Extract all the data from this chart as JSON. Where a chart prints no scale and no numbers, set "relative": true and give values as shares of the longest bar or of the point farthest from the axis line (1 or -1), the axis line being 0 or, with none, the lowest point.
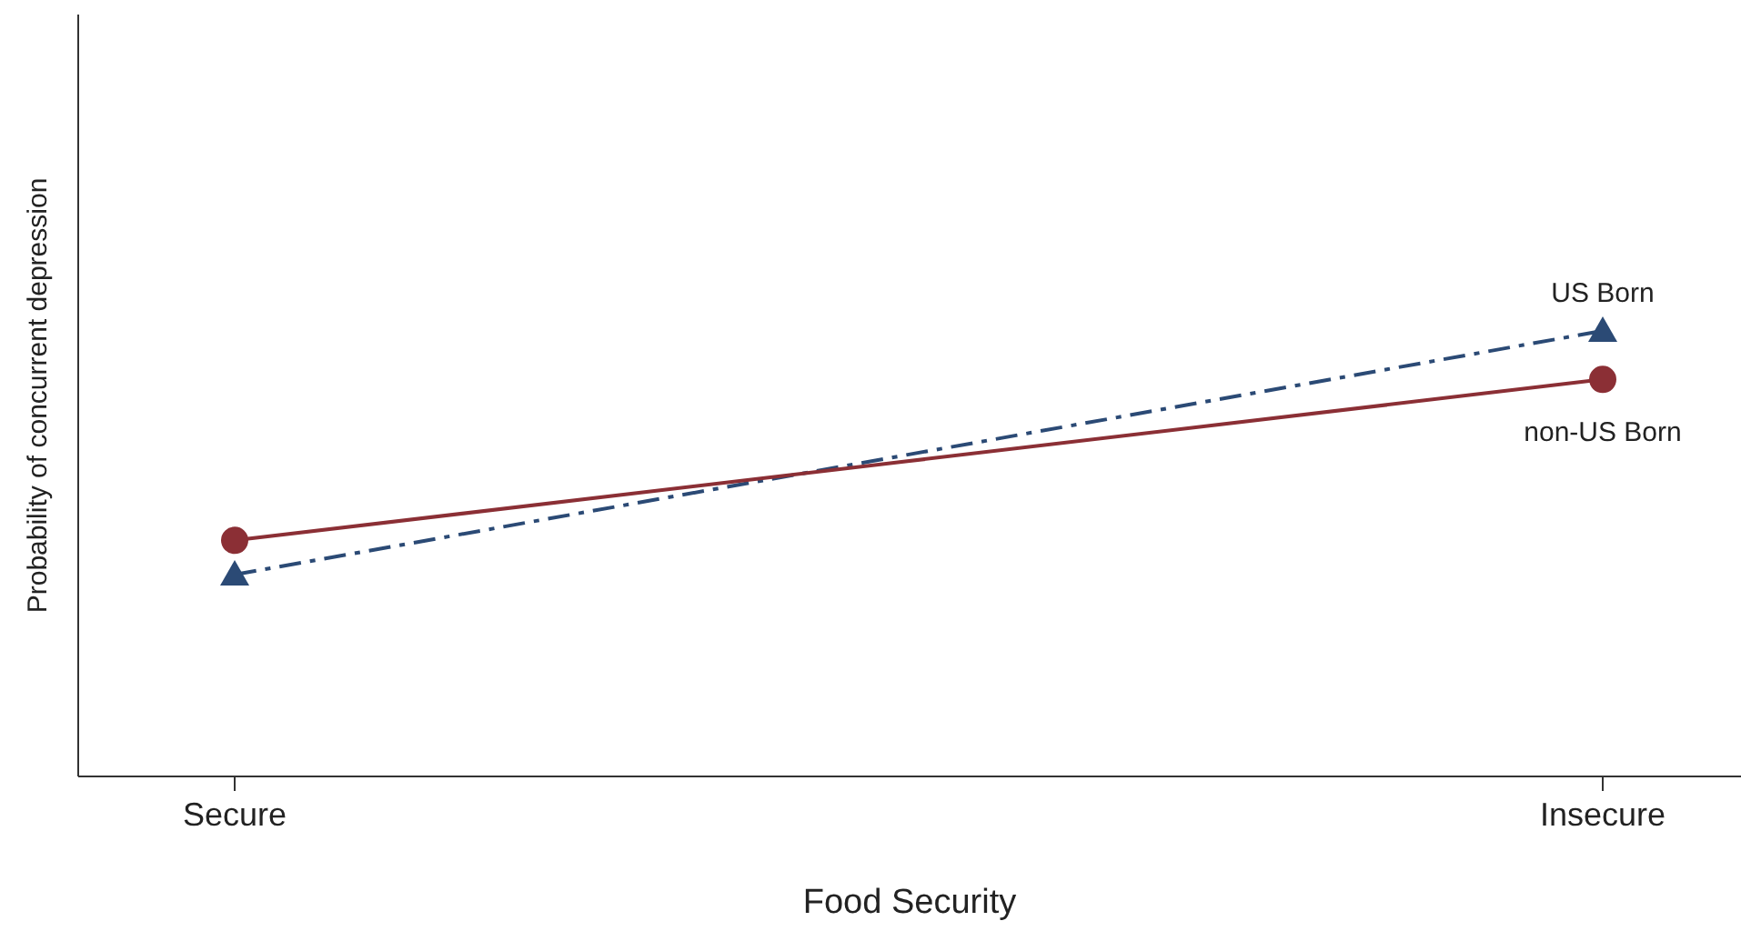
{
  "chart_data": {
    "type": "line",
    "relative": true,
    "xlabel": "Food Security",
    "ylabel": "Probability of concurrent depression",
    "categories": [
      "Secure",
      "Insecure"
    ],
    "legend": false,
    "series": [
      {
        "name": "US Born",
        "color": "#2b4a75",
        "values": [
          0.453,
          1
        ],
        "marker": "triangle",
        "line_style": "dashed"
      },
      {
        "name": "non-US Born",
        "color": "#8b2f35",
        "values": [
          0.53,
          0.891
        ],
        "marker": "circle",
        "line_style": "solid"
      }
    ]
  }
}
